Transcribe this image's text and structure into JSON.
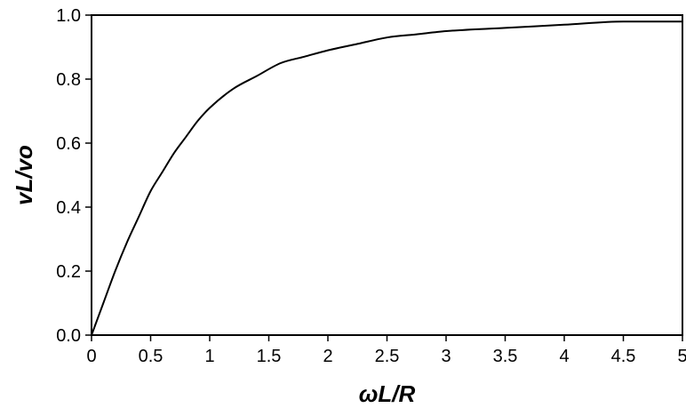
{
  "chart_data": {
    "type": "line",
    "title": "",
    "xlabel": "ωL/R",
    "ylabel": "vL/vo",
    "xlim": [
      0,
      5
    ],
    "ylim": [
      0,
      1
    ],
    "xticks": [
      "0",
      "0.5",
      "1",
      "1.5",
      "2",
      "2.5",
      "3",
      "3.5",
      "4",
      "4.5",
      "5"
    ],
    "xtick_values": [
      0,
      0.5,
      1,
      1.5,
      2,
      2.5,
      3,
      3.5,
      4,
      4.5,
      5
    ],
    "yticks": [
      "0.0",
      "0.2",
      "0.4",
      "0.6",
      "0.8",
      "1.0"
    ],
    "ytick_values": [
      0,
      0.2,
      0.4,
      0.6,
      0.8,
      1.0
    ],
    "grid": false,
    "legend": "none",
    "series": [
      {
        "x": [
          0,
          0.1,
          0.2,
          0.3,
          0.4,
          0.5,
          0.6,
          0.7,
          0.8,
          0.9,
          1.0,
          1.2,
          1.4,
          1.6,
          1.8,
          2.0,
          2.25,
          2.5,
          2.75,
          3.0,
          3.5,
          4.0,
          4.5,
          5.0
        ],
        "y": [
          0,
          0.1,
          0.2,
          0.29,
          0.37,
          0.45,
          0.51,
          0.57,
          0.62,
          0.67,
          0.71,
          0.77,
          0.81,
          0.85,
          0.87,
          0.89,
          0.91,
          0.93,
          0.94,
          0.95,
          0.96,
          0.97,
          0.98,
          0.98
        ],
        "color": "#000000"
      }
    ]
  }
}
